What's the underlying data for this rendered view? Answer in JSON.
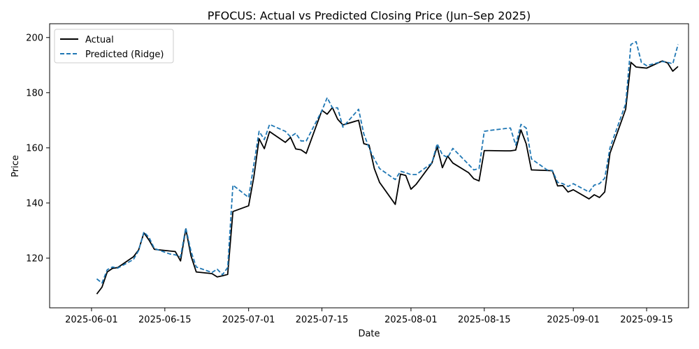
{
  "chart_data": {
    "type": "line",
    "title": "PFOCUS: Actual vs Predicted Closing Price (Jun–Sep 2025)",
    "xlabel": "Date",
    "ylabel": "Price",
    "xlim": [
      "2025-05-24",
      "2025-09-23"
    ],
    "ylim": [
      102,
      205
    ],
    "x_ticks": [
      "2025-06-01",
      "2025-06-15",
      "2025-07-01",
      "2025-07-15",
      "2025-08-01",
      "2025-08-15",
      "2025-09-01",
      "2025-09-15"
    ],
    "y_ticks": [
      120,
      140,
      160,
      180,
      200
    ],
    "grid": false,
    "legend": "upper-left",
    "series": [
      {
        "name": "Actual",
        "color": "#000000",
        "style": "solid",
        "points": [
          [
            "2025-06-02",
            107
          ],
          [
            "2025-06-03",
            109.5
          ],
          [
            "2025-06-04",
            115
          ],
          [
            "2025-06-05",
            116.3
          ],
          [
            "2025-06-06",
            116.6
          ],
          [
            "2025-06-09",
            120.5
          ],
          [
            "2025-06-10",
            123
          ],
          [
            "2025-06-11",
            129.2
          ],
          [
            "2025-06-12",
            126.5
          ],
          [
            "2025-06-13",
            123.2
          ],
          [
            "2025-06-16",
            122.6
          ],
          [
            "2025-06-17",
            122.4
          ],
          [
            "2025-06-18",
            119
          ],
          [
            "2025-06-19",
            130.6
          ],
          [
            "2025-06-20",
            120.8
          ],
          [
            "2025-06-21",
            115
          ],
          [
            "2025-06-24",
            114.4
          ],
          [
            "2025-06-25",
            113.2
          ],
          [
            "2025-06-26",
            113.6
          ],
          [
            "2025-06-27",
            114.1
          ],
          [
            "2025-06-28",
            136.9
          ],
          [
            "2025-07-01",
            139
          ],
          [
            "2025-07-02",
            149.5
          ],
          [
            "2025-07-03",
            163.3
          ],
          [
            "2025-07-04",
            159.7
          ],
          [
            "2025-07-05",
            165.9
          ],
          [
            "2025-07-08",
            162
          ],
          [
            "2025-07-09",
            163.8
          ],
          [
            "2025-07-10",
            159.6
          ],
          [
            "2025-07-11",
            159.3
          ],
          [
            "2025-07-12",
            158
          ],
          [
            "2025-07-15",
            173.6
          ],
          [
            "2025-07-16",
            172.2
          ],
          [
            "2025-07-17",
            174.6
          ],
          [
            "2025-07-18",
            170.4
          ],
          [
            "2025-07-19",
            168.3
          ],
          [
            "2025-07-22",
            170
          ],
          [
            "2025-07-23",
            161.5
          ],
          [
            "2025-07-24",
            161
          ],
          [
            "2025-07-25",
            152.5
          ],
          [
            "2025-07-26",
            147.5
          ],
          [
            "2025-07-29",
            139.5
          ],
          [
            "2025-07-30",
            150.5
          ],
          [
            "2025-07-31",
            150
          ],
          [
            "2025-08-01",
            145
          ],
          [
            "2025-08-02",
            146.8
          ],
          [
            "2025-08-05",
            154.5
          ],
          [
            "2025-08-06",
            160.4
          ],
          [
            "2025-08-07",
            152.8
          ],
          [
            "2025-08-08",
            157
          ],
          [
            "2025-08-09",
            154.5
          ],
          [
            "2025-08-12",
            151
          ],
          [
            "2025-08-13",
            148.8
          ],
          [
            "2025-08-14",
            148
          ],
          [
            "2025-08-15",
            159
          ],
          [
            "2025-08-16",
            159
          ],
          [
            "2025-08-19",
            158.9
          ],
          [
            "2025-08-20",
            158.9
          ],
          [
            "2025-08-21",
            159.2
          ],
          [
            "2025-08-22",
            166.5
          ],
          [
            "2025-08-23",
            161.5
          ],
          [
            "2025-08-24",
            152
          ],
          [
            "2025-08-27",
            151.8
          ],
          [
            "2025-08-28",
            151.7
          ],
          [
            "2025-08-29",
            146.2
          ],
          [
            "2025-08-30",
            146.3
          ],
          [
            "2025-08-31",
            144
          ],
          [
            "2025-09-01",
            144.8
          ],
          [
            "2025-09-04",
            141.5
          ],
          [
            "2025-09-05",
            143
          ],
          [
            "2025-09-06",
            142
          ],
          [
            "2025-09-07",
            144
          ],
          [
            "2025-09-08",
            158
          ],
          [
            "2025-09-11",
            174
          ],
          [
            "2025-09-12",
            191
          ],
          [
            "2025-09-13",
            189.3
          ],
          [
            "2025-09-14",
            189.1
          ],
          [
            "2025-09-15",
            188.9
          ],
          [
            "2025-09-18",
            191.5
          ],
          [
            "2025-09-19",
            190.8
          ],
          [
            "2025-09-20",
            187.8
          ],
          [
            "2025-09-21",
            189.5
          ]
        ]
      },
      {
        "name": "Predicted (Ridge)",
        "color": "#1f77b4",
        "style": "dashed",
        "points": [
          [
            "2025-06-02",
            112.5
          ],
          [
            "2025-06-03",
            111
          ],
          [
            "2025-06-04",
            115.8
          ],
          [
            "2025-06-05",
            116.8
          ],
          [
            "2025-06-06",
            116.4
          ],
          [
            "2025-06-09",
            119.5
          ],
          [
            "2025-06-10",
            122.8
          ],
          [
            "2025-06-11",
            129.5
          ],
          [
            "2025-06-12",
            127.5
          ],
          [
            "2025-06-13",
            123.5
          ],
          [
            "2025-06-16",
            121.5
          ],
          [
            "2025-06-17",
            121.2
          ],
          [
            "2025-06-18",
            120.5
          ],
          [
            "2025-06-19",
            131
          ],
          [
            "2025-06-20",
            122.5
          ],
          [
            "2025-06-21",
            116.8
          ],
          [
            "2025-06-24",
            114.8
          ],
          [
            "2025-06-25",
            116
          ],
          [
            "2025-06-26",
            114
          ],
          [
            "2025-06-27",
            116.6
          ],
          [
            "2025-06-28",
            146.5
          ],
          [
            "2025-07-01",
            142
          ],
          [
            "2025-07-02",
            154
          ],
          [
            "2025-07-03",
            166
          ],
          [
            "2025-07-04",
            163
          ],
          [
            "2025-07-05",
            168.5
          ],
          [
            "2025-07-08",
            166
          ],
          [
            "2025-07-09",
            164
          ],
          [
            "2025-07-10",
            165.3
          ],
          [
            "2025-07-11",
            162.5
          ],
          [
            "2025-07-12",
            162.5
          ],
          [
            "2025-07-15",
            173.5
          ],
          [
            "2025-07-16",
            178.2
          ],
          [
            "2025-07-17",
            174.5
          ],
          [
            "2025-07-18",
            174.5
          ],
          [
            "2025-07-19",
            167.5
          ],
          [
            "2025-07-22",
            174
          ],
          [
            "2025-07-23",
            165
          ],
          [
            "2025-07-24",
            160
          ],
          [
            "2025-07-25",
            156
          ],
          [
            "2025-07-26",
            152.5
          ],
          [
            "2025-07-29",
            148.5
          ],
          [
            "2025-07-30",
            151.5
          ],
          [
            "2025-07-31",
            151
          ],
          [
            "2025-08-01",
            150.3
          ],
          [
            "2025-08-02",
            150.3
          ],
          [
            "2025-08-05",
            154.5
          ],
          [
            "2025-08-06",
            161.5
          ],
          [
            "2025-08-07",
            157.5
          ],
          [
            "2025-08-08",
            156.5
          ],
          [
            "2025-08-09",
            159.8
          ],
          [
            "2025-08-12",
            154
          ],
          [
            "2025-08-13",
            152
          ],
          [
            "2025-08-14",
            152.5
          ],
          [
            "2025-08-15",
            166
          ],
          [
            "2025-08-16",
            166.3
          ],
          [
            "2025-08-19",
            167
          ],
          [
            "2025-08-20",
            167.2
          ],
          [
            "2025-08-21",
            161
          ],
          [
            "2025-08-22",
            168.5
          ],
          [
            "2025-08-23",
            167.2
          ],
          [
            "2025-08-24",
            156
          ],
          [
            "2025-08-27",
            152
          ],
          [
            "2025-08-28",
            151.8
          ],
          [
            "2025-08-29",
            147.5
          ],
          [
            "2025-08-30",
            147
          ],
          [
            "2025-08-31",
            146
          ],
          [
            "2025-09-01",
            147
          ],
          [
            "2025-09-04",
            144
          ],
          [
            "2025-09-05",
            146.5
          ],
          [
            "2025-09-06",
            147
          ],
          [
            "2025-09-07",
            149
          ],
          [
            "2025-09-08",
            160
          ],
          [
            "2025-09-11",
            176
          ],
          [
            "2025-09-12",
            197.5
          ],
          [
            "2025-09-13",
            198.5
          ],
          [
            "2025-09-14",
            191
          ],
          [
            "2025-09-15",
            189.8
          ],
          [
            "2025-09-18",
            191.3
          ],
          [
            "2025-09-19",
            191
          ],
          [
            "2025-09-20",
            190.5
          ],
          [
            "2025-09-21",
            197.5
          ]
        ]
      }
    ]
  }
}
